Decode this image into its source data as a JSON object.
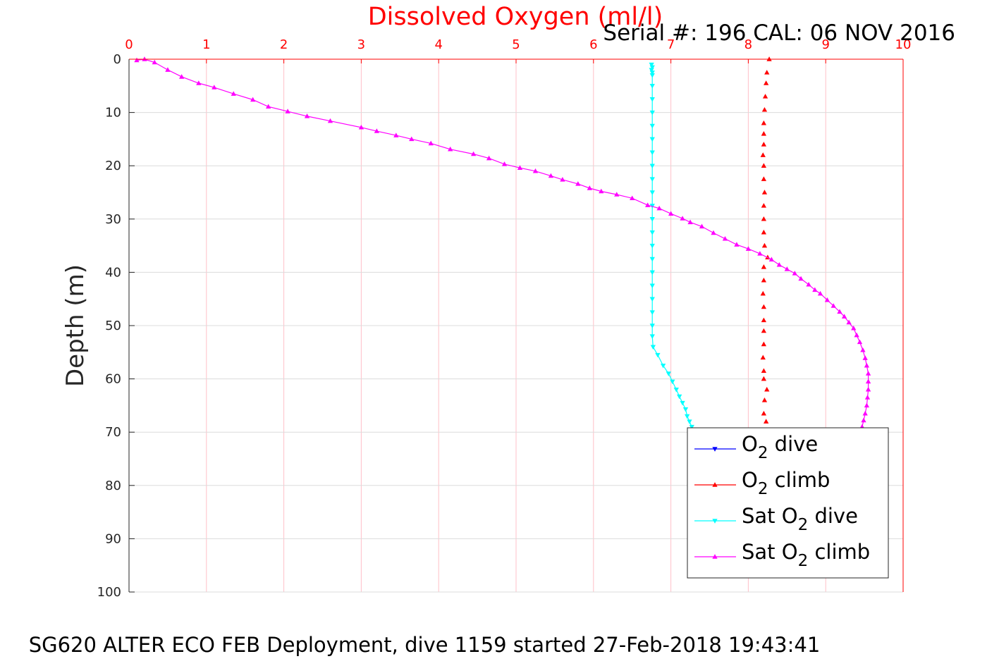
{
  "chart_data": {
    "type": "line",
    "title": "Dissolved Oxygen (ml/l)",
    "subtitle": "Serial #: 196  CAL: 06 NOV 2016",
    "caption": "SG620 ALTER ECO FEB Deployment, dive 1159 started 27-Feb-2018 19:43:41",
    "xlabel": "",
    "ylabel": "Depth (m)",
    "xlim": [
      0,
      10
    ],
    "ylim": [
      0,
      100
    ],
    "y_reversed": true,
    "x_axis_position": "top",
    "x_ticks": [
      "0",
      "1",
      "2",
      "3",
      "4",
      "5",
      "6",
      "7",
      "8",
      "9",
      "10"
    ],
    "y_ticks": [
      "0",
      "10",
      "20",
      "30",
      "40",
      "50",
      "60",
      "70",
      "80",
      "90",
      "100"
    ],
    "grid": true,
    "legend_position": "bottom-right",
    "legend": [
      {
        "pre": "O",
        "sub": "2",
        "post": " dive"
      },
      {
        "pre": "O",
        "sub": "2",
        "post": " climb"
      },
      {
        "pre": "Sat O",
        "sub": "2",
        "post": " dive"
      },
      {
        "pre": "Sat O",
        "sub": "2",
        "post": " climb"
      }
    ],
    "series": [
      {
        "color": "#0000ff",
        "marker": "triangle-down",
        "line": true,
        "points": []
      },
      {
        "color": "#ff0000",
        "marker": "triangle-up",
        "line": false,
        "points": [
          [
            8.27,
            0
          ],
          [
            8.24,
            2.5
          ],
          [
            8.23,
            4.5
          ],
          [
            8.22,
            7
          ],
          [
            8.21,
            9.5
          ],
          [
            8.2,
            12
          ],
          [
            8.2,
            14
          ],
          [
            8.2,
            16
          ],
          [
            8.19,
            18
          ],
          [
            8.2,
            20
          ],
          [
            8.2,
            22.5
          ],
          [
            8.21,
            25
          ],
          [
            8.2,
            27.5
          ],
          [
            8.2,
            30
          ],
          [
            8.2,
            32.5
          ],
          [
            8.21,
            35
          ],
          [
            8.25,
            37.2
          ],
          [
            8.2,
            39
          ],
          [
            8.2,
            41.5
          ],
          [
            8.19,
            44
          ],
          [
            8.2,
            46.5
          ],
          [
            8.2,
            49
          ],
          [
            8.2,
            51
          ],
          [
            8.2,
            53.5
          ],
          [
            8.19,
            56
          ],
          [
            8.2,
            58.5
          ],
          [
            8.2,
            60
          ],
          [
            8.24,
            62
          ],
          [
            8.21,
            64
          ],
          [
            8.2,
            66.5
          ],
          [
            8.23,
            68
          ]
        ]
      },
      {
        "color": "#00ffff",
        "marker": "triangle-down",
        "line": true,
        "points": [
          [
            6.75,
            1
          ],
          [
            6.76,
            1.5
          ],
          [
            6.75,
            2
          ],
          [
            6.76,
            2.5
          ],
          [
            6.76,
            3
          ],
          [
            6.76,
            5
          ],
          [
            6.76,
            7.5
          ],
          [
            6.76,
            10
          ],
          [
            6.76,
            12.5
          ],
          [
            6.76,
            15
          ],
          [
            6.76,
            17.5
          ],
          [
            6.76,
            20
          ],
          [
            6.76,
            22.5
          ],
          [
            6.76,
            25
          ],
          [
            6.76,
            27.5
          ],
          [
            6.76,
            30
          ],
          [
            6.76,
            32.5
          ],
          [
            6.76,
            35
          ],
          [
            6.76,
            37.5
          ],
          [
            6.76,
            40
          ],
          [
            6.76,
            42.5
          ],
          [
            6.76,
            45
          ],
          [
            6.76,
            47.5
          ],
          [
            6.76,
            50
          ],
          [
            6.76,
            52
          ],
          [
            6.77,
            54
          ],
          [
            6.83,
            55.5
          ],
          [
            6.9,
            57.5
          ],
          [
            6.97,
            59
          ],
          [
            7.02,
            60.5
          ],
          [
            7.07,
            62
          ],
          [
            7.11,
            63.3
          ],
          [
            7.15,
            64.5
          ],
          [
            7.19,
            65.7
          ],
          [
            7.21,
            67
          ],
          [
            7.24,
            68
          ],
          [
            7.27,
            69
          ]
        ]
      },
      {
        "color": "#ff00ff",
        "marker": "triangle-up",
        "line": true,
        "points": [
          [
            0.1,
            0.2
          ],
          [
            0.2,
            0
          ],
          [
            0.33,
            0.6
          ],
          [
            0.5,
            2
          ],
          [
            0.68,
            3.3
          ],
          [
            0.9,
            4.5
          ],
          [
            1.1,
            5.3
          ],
          [
            1.35,
            6.5
          ],
          [
            1.6,
            7.6
          ],
          [
            1.8,
            8.9
          ],
          [
            2.05,
            9.8
          ],
          [
            2.3,
            10.7
          ],
          [
            2.6,
            11.6
          ],
          [
            3.0,
            12.8
          ],
          [
            3.2,
            13.5
          ],
          [
            3.45,
            14.3
          ],
          [
            3.65,
            15
          ],
          [
            3.9,
            15.8
          ],
          [
            4.15,
            16.9
          ],
          [
            4.45,
            17.8
          ],
          [
            4.65,
            18.6
          ],
          [
            4.85,
            19.7
          ],
          [
            5.05,
            20.4
          ],
          [
            5.25,
            21
          ],
          [
            5.45,
            21.9
          ],
          [
            5.6,
            22.6
          ],
          [
            5.8,
            23.4
          ],
          [
            5.95,
            24.2
          ],
          [
            6.1,
            24.8
          ],
          [
            6.3,
            25.4
          ],
          [
            6.5,
            26.1
          ],
          [
            6.7,
            27.4
          ],
          [
            6.85,
            28
          ],
          [
            7.0,
            29
          ],
          [
            7.15,
            29.9
          ],
          [
            7.25,
            30.6
          ],
          [
            7.4,
            31.4
          ],
          [
            7.55,
            32.6
          ],
          [
            7.7,
            33.7
          ],
          [
            7.85,
            34.8
          ],
          [
            8.0,
            35.6
          ],
          [
            8.15,
            36.5
          ],
          [
            8.3,
            37.6
          ],
          [
            8.4,
            38.6
          ],
          [
            8.5,
            39.4
          ],
          [
            8.6,
            40.2
          ],
          [
            8.68,
            41.2
          ],
          [
            8.78,
            42.3
          ],
          [
            8.86,
            43.3
          ],
          [
            8.93,
            44
          ],
          [
            9.02,
            45.2
          ],
          [
            9.1,
            46.3
          ],
          [
            9.18,
            47.4
          ],
          [
            9.24,
            48.3
          ],
          [
            9.3,
            49.4
          ],
          [
            9.36,
            50.5
          ],
          [
            9.4,
            51.8
          ],
          [
            9.44,
            53.1
          ],
          [
            9.48,
            54.6
          ],
          [
            9.51,
            56.1
          ],
          [
            9.53,
            57.5
          ],
          [
            9.55,
            59
          ],
          [
            9.55,
            60.5
          ],
          [
            9.55,
            62
          ],
          [
            9.54,
            63.5
          ],
          [
            9.53,
            65
          ],
          [
            9.51,
            66.5
          ],
          [
            9.49,
            67.8
          ],
          [
            9.47,
            69
          ]
        ]
      }
    ]
  }
}
